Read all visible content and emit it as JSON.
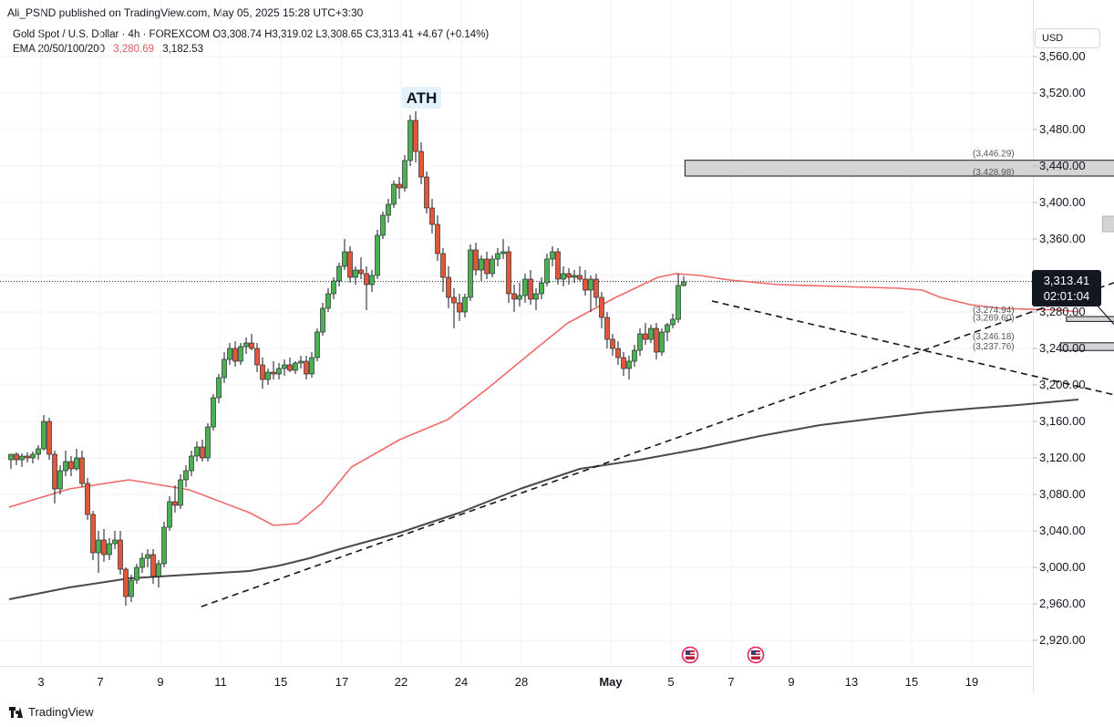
{
  "header": {
    "publisher": "Ali_PSND published on TradingView.com, May 05, 2025 15:28 UTC+3:30",
    "symbol_line": "Gold Spot / U.S. Dollar · 4h · FOREXCOM  O3,308.74  H3,319.02  L3,308.65  C3,313.41  +4.67 (+0.14%)",
    "ema_label": "EMA 20/50/100/200",
    "ema_value_1": "3,280.69",
    "ema_value_2": "3,182.53",
    "currency": "USD"
  },
  "price_tag": {
    "price": "3,313.41",
    "countdown": "02:01:04"
  },
  "footer": {
    "brand": "TradingView"
  },
  "colors": {
    "bull": "#4caf50",
    "bear": "#e0573a",
    "ema_fast": "#f06a6a",
    "ema_slow": "#4a4a4a",
    "zone_fill": "#d4d4d4",
    "price_tag_bg": "#131722",
    "event_icon": "#e91e63"
  },
  "icons": [
    "us-flag-event-icon",
    "us-flag-event-icon",
    "tradingview-logo-icon"
  ],
  "chart_data": {
    "type": "candlestick",
    "timeframe": "4h",
    "y_axis_labels": [
      "3,560.00",
      "3,520.00",
      "3,480.00",
      "3,440.00",
      "3,400.00",
      "3,360.00",
      "3,320.00",
      "3,280.00",
      "3,240.00",
      "3,200.00",
      "3,160.00",
      "3,120.00",
      "3,080.00",
      "3,040.00",
      "3,000.00",
      "2,960.00",
      "2,920.00"
    ],
    "x_axis_labels": [
      "3",
      "7",
      "9",
      "11",
      "15",
      "17",
      "22",
      "24",
      "28",
      "May",
      "5",
      "7",
      "9",
      "13",
      "15",
      "19"
    ],
    "annotation": "ATH",
    "candles": [
      [
        3,
        0.0,
        3118,
        3124,
        3108,
        3124
      ],
      [
        3,
        0.2,
        3124,
        3126,
        3112,
        3118
      ],
      [
        3,
        0.4,
        3118,
        3125,
        3110,
        3122
      ],
      [
        3,
        0.6,
        3122,
        3126,
        3115,
        3120
      ],
      [
        3,
        0.8,
        3120,
        3127,
        3114,
        3124
      ],
      [
        4,
        0.0,
        3124,
        3134,
        3118,
        3130
      ],
      [
        4,
        0.2,
        3130,
        3167,
        3128,
        3160
      ],
      [
        4,
        0.4,
        3160,
        3164,
        3118,
        3124
      ],
      [
        4,
        0.6,
        3124,
        3128,
        3070,
        3086
      ],
      [
        4,
        0.8,
        3086,
        3112,
        3080,
        3106
      ],
      [
        7,
        0.0,
        3106,
        3128,
        3100,
        3116
      ],
      [
        7,
        0.2,
        3116,
        3122,
        3100,
        3108
      ],
      [
        7,
        0.4,
        3108,
        3130,
        3106,
        3120
      ],
      [
        7,
        0.6,
        3120,
        3128,
        3088,
        3092
      ],
      [
        7,
        0.8,
        3092,
        3098,
        3052,
        3058
      ],
      [
        8,
        0.0,
        3058,
        3062,
        3008,
        3016
      ],
      [
        8,
        0.2,
        3016,
        3040,
        2994,
        3030
      ],
      [
        8,
        0.4,
        3030,
        3042,
        3006,
        3014
      ],
      [
        8,
        0.6,
        3014,
        3032,
        3008,
        3026
      ],
      [
        8,
        0.8,
        3026,
        3040,
        3020,
        3030
      ],
      [
        8,
        1.0,
        3030,
        3040,
        2992,
        2998
      ],
      [
        8,
        1.2,
        2998,
        3000,
        2958,
        2968
      ],
      [
        8,
        1.4,
        2968,
        2992,
        2962,
        2986
      ],
      [
        8,
        1.6,
        2986,
        3004,
        2982,
        3000
      ],
      [
        8,
        1.8,
        3000,
        3016,
        2994,
        3010
      ],
      [
        9,
        0.0,
        3010,
        3020,
        3000,
        3014
      ],
      [
        9,
        0.2,
        3014,
        3020,
        2982,
        2990
      ],
      [
        9,
        0.4,
        2990,
        3008,
        2978,
        3004
      ],
      [
        9,
        0.6,
        3004,
        3050,
        3000,
        3044
      ],
      [
        9,
        0.8,
        3044,
        3078,
        3040,
        3072
      ],
      [
        10,
        0.0,
        3072,
        3090,
        3060,
        3068
      ],
      [
        10,
        0.2,
        3068,
        3102,
        3064,
        3096
      ],
      [
        10,
        0.4,
        3096,
        3112,
        3088,
        3106
      ],
      [
        10,
        0.6,
        3106,
        3128,
        3100,
        3122
      ],
      [
        10,
        0.8,
        3122,
        3138,
        3116,
        3132
      ],
      [
        10,
        1.0,
        3132,
        3140,
        3116,
        3120
      ],
      [
        10,
        1.2,
        3120,
        3158,
        3116,
        3154
      ],
      [
        10,
        1.4,
        3154,
        3190,
        3150,
        3186
      ],
      [
        10,
        1.6,
        3186,
        3212,
        3180,
        3208
      ],
      [
        10,
        1.8,
        3208,
        3236,
        3202,
        3228
      ],
      [
        11,
        0.0,
        3228,
        3246,
        3222,
        3240
      ],
      [
        11,
        0.2,
        3240,
        3248,
        3220,
        3226
      ],
      [
        11,
        0.4,
        3226,
        3246,
        3222,
        3242
      ],
      [
        11,
        0.6,
        3242,
        3252,
        3234,
        3246
      ],
      [
        11,
        0.8,
        3246,
        3256,
        3238,
        3240
      ],
      [
        14,
        0.0,
        3240,
        3246,
        3214,
        3222
      ],
      [
        14,
        0.2,
        3222,
        3230,
        3196,
        3206
      ],
      [
        14,
        0.4,
        3206,
        3218,
        3200,
        3214
      ],
      [
        14,
        0.6,
        3214,
        3226,
        3206,
        3212
      ],
      [
        14,
        0.8,
        3212,
        3224,
        3206,
        3218
      ],
      [
        15,
        0.0,
        3218,
        3228,
        3210,
        3222
      ],
      [
        15,
        0.2,
        3222,
        3230,
        3214,
        3216
      ],
      [
        15,
        0.4,
        3216,
        3226,
        3212,
        3224
      ],
      [
        15,
        0.6,
        3224,
        3232,
        3218,
        3226
      ],
      [
        15,
        0.8,
        3226,
        3232,
        3206,
        3212
      ],
      [
        16,
        0.0,
        3212,
        3236,
        3208,
        3230
      ],
      [
        16,
        0.2,
        3230,
        3262,
        3226,
        3258
      ],
      [
        16,
        0.4,
        3258,
        3290,
        3254,
        3284
      ],
      [
        16,
        0.6,
        3284,
        3306,
        3280,
        3300
      ],
      [
        16,
        0.8,
        3300,
        3318,
        3294,
        3314
      ],
      [
        17,
        0.0,
        3314,
        3334,
        3308,
        3330
      ],
      [
        17,
        0.2,
        3330,
        3360,
        3326,
        3346
      ],
      [
        17,
        0.4,
        3346,
        3352,
        3312,
        3318
      ],
      [
        17,
        0.6,
        3318,
        3330,
        3310,
        3326
      ],
      [
        17,
        0.8,
        3326,
        3340,
        3316,
        3322
      ],
      [
        18,
        0.0,
        3322,
        3330,
        3282,
        3310
      ],
      [
        18,
        0.2,
        3310,
        3326,
        3302,
        3320
      ],
      [
        18,
        0.4,
        3320,
        3370,
        3316,
        3364
      ],
      [
        18,
        0.6,
        3364,
        3390,
        3360,
        3386
      ],
      [
        18,
        0.8,
        3386,
        3404,
        3378,
        3398
      ],
      [
        21,
        0.0,
        3398,
        3424,
        3394,
        3420
      ],
      [
        21,
        0.2,
        3420,
        3428,
        3404,
        3416
      ],
      [
        21,
        0.4,
        3416,
        3452,
        3412,
        3446
      ],
      [
        21,
        0.6,
        3446,
        3496,
        3440,
        3490
      ],
      [
        21,
        0.8,
        3490,
        3500,
        3444,
        3456
      ],
      [
        22,
        0.0,
        3456,
        3466,
        3420,
        3428
      ],
      [
        22,
        0.2,
        3428,
        3434,
        3388,
        3394
      ],
      [
        22,
        0.4,
        3394,
        3404,
        3366,
        3376
      ],
      [
        22,
        0.6,
        3376,
        3386,
        3336,
        3344
      ],
      [
        22,
        0.8,
        3344,
        3350,
        3302,
        3318
      ],
      [
        23,
        0.0,
        3318,
        3330,
        3284,
        3296
      ],
      [
        23,
        0.2,
        3296,
        3306,
        3262,
        3290
      ],
      [
        23,
        0.4,
        3290,
        3300,
        3270,
        3280
      ],
      [
        23,
        0.6,
        3280,
        3300,
        3274,
        3296
      ],
      [
        23,
        0.8,
        3296,
        3354,
        3292,
        3348
      ],
      [
        24,
        0.0,
        3348,
        3356,
        3320,
        3326
      ],
      [
        24,
        0.2,
        3326,
        3342,
        3314,
        3338
      ],
      [
        24,
        0.4,
        3338,
        3346,
        3316,
        3322
      ],
      [
        24,
        0.6,
        3322,
        3342,
        3318,
        3338
      ],
      [
        24,
        0.8,
        3338,
        3350,
        3330,
        3344
      ],
      [
        25,
        0.0,
        3344,
        3360,
        3338,
        3346
      ],
      [
        25,
        0.2,
        3346,
        3352,
        3290,
        3300
      ],
      [
        25,
        0.4,
        3300,
        3310,
        3280,
        3294
      ],
      [
        25,
        0.6,
        3294,
        3312,
        3286,
        3298
      ],
      [
        25,
        0.8,
        3298,
        3322,
        3290,
        3316
      ],
      [
        28,
        0.0,
        3316,
        3326,
        3288,
        3294
      ],
      [
        28,
        0.2,
        3294,
        3306,
        3282,
        3300
      ],
      [
        28,
        0.4,
        3300,
        3318,
        3294,
        3312
      ],
      [
        28,
        0.6,
        3312,
        3344,
        3308,
        3338
      ],
      [
        28,
        0.8,
        3338,
        3352,
        3330,
        3346
      ],
      [
        29,
        0.0,
        3346,
        3350,
        3310,
        3316
      ],
      [
        29,
        0.2,
        3316,
        3330,
        3308,
        3322
      ],
      [
        29,
        0.4,
        3322,
        3328,
        3310,
        3318
      ],
      [
        29,
        0.6,
        3318,
        3326,
        3312,
        3320
      ],
      [
        29,
        0.8,
        3320,
        3330,
        3314,
        3316
      ],
      [
        30,
        0.0,
        3316,
        3326,
        3298,
        3304
      ],
      [
        30,
        0.2,
        3304,
        3320,
        3280,
        3316
      ],
      [
        30,
        0.4,
        3316,
        3322,
        3286,
        3296
      ],
      [
        30,
        0.6,
        3296,
        3302,
        3262,
        3274
      ],
      [
        30,
        0.8,
        3274,
        3280,
        3240,
        3250
      ],
      [
        31,
        0.0,
        3250,
        3256,
        3232,
        3240
      ],
      [
        31,
        0.2,
        3240,
        3248,
        3222,
        3230
      ],
      [
        31,
        0.4,
        3230,
        3236,
        3210,
        3218
      ],
      [
        31,
        0.6,
        3218,
        3232,
        3206,
        3226
      ],
      [
        31,
        0.8,
        3226,
        3244,
        3220,
        3238
      ],
      [
        32,
        0.0,
        3238,
        3262,
        3232,
        3256
      ],
      [
        32,
        0.2,
        3256,
        3268,
        3244,
        3250
      ],
      [
        32,
        0.4,
        3250,
        3266,
        3246,
        3262
      ],
      [
        32,
        0.6,
        3262,
        3268,
        3228,
        3236
      ],
      [
        32,
        0.8,
        3236,
        3262,
        3232,
        3258
      ],
      [
        35,
        0.0,
        3258,
        3268,
        3248,
        3266
      ],
      [
        35,
        0.2,
        3266,
        3278,
        3262,
        3272
      ],
      [
        35,
        0.4,
        3272,
        3322,
        3268,
        3309
      ],
      [
        35,
        0.6,
        3309,
        3319,
        3308,
        3313
      ]
    ],
    "ema_fast": [
      [
        0.0,
        3066
      ],
      [
        2.0,
        3086
      ],
      [
        4.0,
        3096
      ],
      [
        6.0,
        3085
      ],
      [
        8.0,
        3060
      ],
      [
        8.8,
        3046
      ],
      [
        9.6,
        3048
      ],
      [
        10.4,
        3070
      ],
      [
        11.4,
        3110
      ],
      [
        13.0,
        3140
      ],
      [
        14.6,
        3162
      ],
      [
        16.0,
        3198
      ],
      [
        17.4,
        3236
      ],
      [
        18.6,
        3268
      ],
      [
        20.2,
        3296
      ],
      [
        21.6,
        3318
      ],
      [
        22.2,
        3322
      ],
      [
        23.0,
        3320
      ],
      [
        24.0,
        3315
      ],
      [
        25.6,
        3310
      ],
      [
        27.6,
        3308
      ],
      [
        29.6,
        3306
      ],
      [
        30.4,
        3304
      ],
      [
        31.0,
        3296
      ],
      [
        32.0,
        3288
      ],
      [
        33.0,
        3284
      ],
      [
        35.0,
        3282
      ],
      [
        35.6,
        3280
      ]
    ],
    "ema_slow": [
      [
        0.0,
        2965
      ],
      [
        2.0,
        2978
      ],
      [
        4.0,
        2988
      ],
      [
        6.0,
        2992
      ],
      [
        7.0,
        2994
      ],
      [
        8.0,
        2996
      ],
      [
        9.0,
        3002
      ],
      [
        10.0,
        3010
      ],
      [
        11.0,
        3020
      ],
      [
        13.0,
        3038
      ],
      [
        15.0,
        3060
      ],
      [
        17.0,
        3086
      ],
      [
        19.0,
        3108
      ],
      [
        21.0,
        3118
      ],
      [
        23.0,
        3130
      ],
      [
        25.0,
        3144
      ],
      [
        27.0,
        3156
      ],
      [
        29.0,
        3164
      ],
      [
        30.6,
        3170
      ],
      [
        32.0,
        3174
      ],
      [
        33.6,
        3178
      ],
      [
        35.6,
        3184
      ]
    ],
    "trendlines": [
      {
        "from": [
          6.4,
          2957
        ],
        "to": [
          40.2,
          3352
        ]
      },
      {
        "from": [
          23.4,
          3292
        ],
        "to": [
          45.8,
          3120
        ]
      }
    ],
    "zones": [
      {
        "from": 22.5,
        "to": 40.5,
        "top": 3446.29,
        "bottom": 3428.98,
        "top_label": "(3,446.29)",
        "bottom_label": "(3,428.98)"
      },
      {
        "from": 35.2,
        "to": 40.5,
        "top": 3274.94,
        "bottom": 3269.6,
        "top_label": "(3,274.94)",
        "bottom_label": "(3,269.60)"
      },
      {
        "from": 35.0,
        "to": 40.5,
        "top": 3246.18,
        "bottom": 3237.76,
        "top_label": "(3,246.18)",
        "bottom_label": "(3,237.76)"
      },
      {
        "from": 36.4,
        "to": 41.8,
        "top": 3385,
        "bottom": 3368,
        "top_label": "",
        "bottom_label": ""
      }
    ],
    "projections": [
      [
        [
          36.2,
          3288
        ],
        [
          36.9,
          3262
        ],
        [
          37.6,
          3289
        ],
        [
          38.5,
          3314
        ]
      ],
      [
        [
          36.9,
          3262
        ],
        [
          37.4,
          3244
        ],
        [
          38.2,
          3290
        ]
      ],
      [
        [
          37.0,
          3346
        ],
        [
          37.6,
          3368
        ],
        [
          38.0,
          3352
        ],
        [
          38.8,
          3386
        ],
        [
          39.7,
          3328
        ]
      ],
      [
        [
          38.2,
          3416
        ],
        [
          38.7,
          3436
        ],
        [
          39.2,
          3424
        ],
        [
          39.8,
          3456
        ],
        [
          40.7,
          3364
        ]
      ]
    ],
    "current_price": 3313.41,
    "y_range": [
      2900,
      3580
    ]
  }
}
